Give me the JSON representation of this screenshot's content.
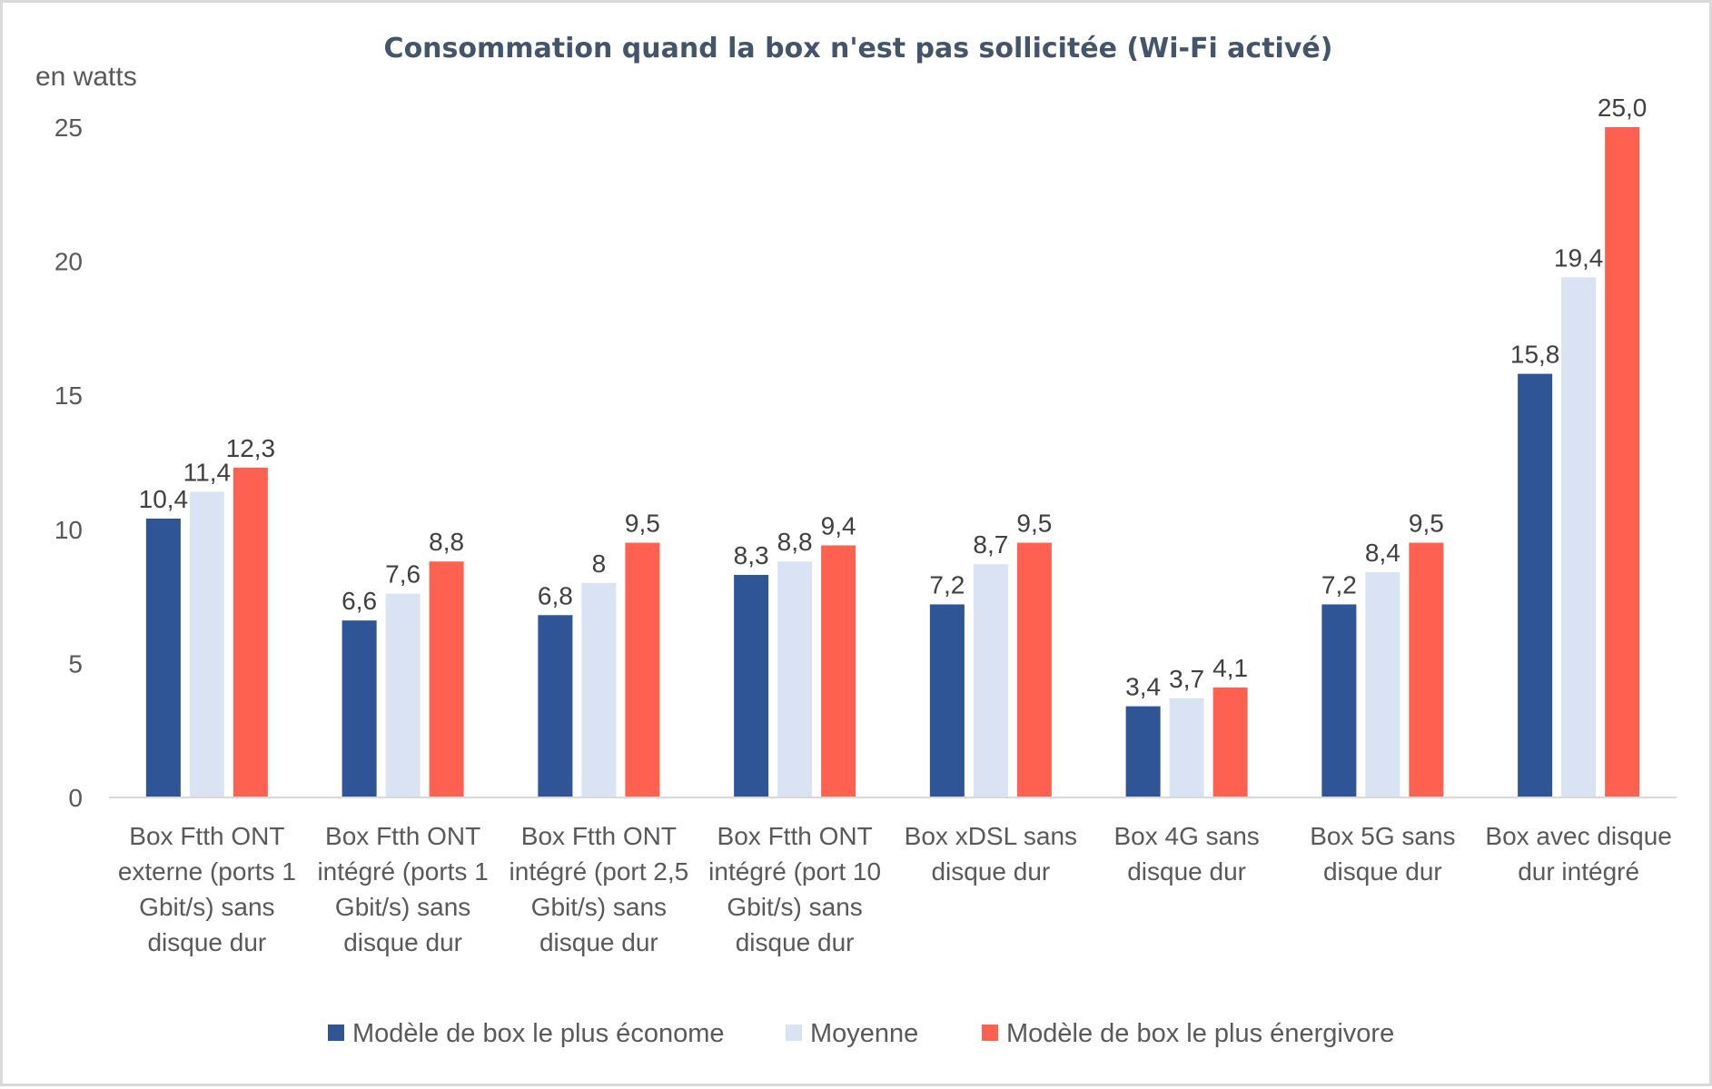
{
  "chart_data": {
    "type": "bar",
    "title": "Consommation  quand la box n'est pas sollicitée (Wi-Fi activé)",
    "ylabel": "en watts",
    "ylim": [
      0,
      25
    ],
    "yticks": [
      "0",
      "5",
      "10",
      "15",
      "20",
      "25"
    ],
    "grid": false,
    "legend_position": "bottom",
    "categories": [
      [
        "Box Ftth ONT",
        "externe (ports 1",
        "Gbit/s) sans",
        "disque dur"
      ],
      [
        "Box Ftth ONT",
        "intégré (ports 1",
        "Gbit/s) sans",
        "disque dur"
      ],
      [
        "Box Ftth ONT",
        "intégré (port 2,5",
        "Gbit/s) sans",
        "disque dur"
      ],
      [
        "Box Ftth ONT",
        "intégré (port 10",
        "Gbit/s) sans",
        "disque dur"
      ],
      [
        "Box xDSL sans",
        "disque dur"
      ],
      [
        "Box 4G sans",
        "disque dur"
      ],
      [
        "Box 5G sans",
        "disque dur"
      ],
      [
        "Box avec disque",
        "dur intégré"
      ]
    ],
    "series": [
      {
        "name": "Modèle de box le plus économe",
        "color": "#2f5597",
        "values": [
          10.4,
          6.6,
          6.8,
          8.3,
          7.2,
          3.4,
          7.2,
          15.8
        ],
        "labels": [
          "10,4",
          "6,6",
          "6,8",
          "8,3",
          "7,2",
          "3,4",
          "7,2",
          "15,8"
        ]
      },
      {
        "name": "Moyenne",
        "color": "#dae3f3",
        "values": [
          11.4,
          7.6,
          8,
          8.8,
          8.7,
          3.7,
          8.4,
          19.4
        ],
        "labels": [
          "11,4",
          "7,6",
          "8",
          "8,8",
          "8,7",
          "3,7",
          "8,4",
          "19,4"
        ]
      },
      {
        "name": "Modèle de box le plus énergivore",
        "color": "#ff6150",
        "values": [
          12.3,
          8.8,
          9.5,
          9.4,
          9.5,
          4.1,
          9.5,
          25.0
        ],
        "labels": [
          "12,3",
          "8,8",
          "9,5",
          "9,4",
          "9,5",
          "4,1",
          "9,5",
          "25,0"
        ]
      }
    ]
  }
}
